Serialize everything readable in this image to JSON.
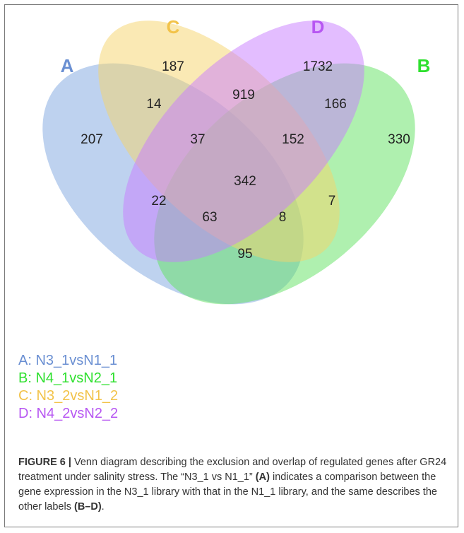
{
  "diagram": {
    "sets": [
      {
        "id": "A",
        "label": "A",
        "color": "#7ea6e0",
        "label_color": "#6a8fd2"
      },
      {
        "id": "B",
        "label": "B",
        "color": "#5fe25f",
        "label_color": "#2fe02f"
      },
      {
        "id": "C",
        "label": "C",
        "color": "#f5d36a",
        "label_color": "#f2c34a"
      },
      {
        "id": "D",
        "label": "D",
        "color": "#c77bff",
        "label_color": "#b757f2"
      }
    ],
    "regions": [
      {
        "key": "C_only",
        "value": "187"
      },
      {
        "key": "D_only",
        "value": "1732"
      },
      {
        "key": "AC",
        "value": "14"
      },
      {
        "key": "CD",
        "value": "919"
      },
      {
        "key": "BD",
        "value": "166"
      },
      {
        "key": "A_only",
        "value": "207"
      },
      {
        "key": "ACD",
        "value": "37"
      },
      {
        "key": "BCD",
        "value": "152"
      },
      {
        "key": "B_only",
        "value": "330"
      },
      {
        "key": "ABCD",
        "value": "342"
      },
      {
        "key": "AD",
        "value": "22"
      },
      {
        "key": "BC",
        "value": "7"
      },
      {
        "key": "ABD",
        "value": "63"
      },
      {
        "key": "ABC",
        "value": "8"
      },
      {
        "key": "AB",
        "value": "95"
      }
    ]
  },
  "legend": [
    {
      "text": "A: N3_1vsN1_1",
      "color": "#6a8fd2"
    },
    {
      "text": "B: N4_1vsN2_1",
      "color": "#2fe02f"
    },
    {
      "text": "C: N3_2vsN1_2",
      "color": "#f2c34a"
    },
    {
      "text": "D: N4_2vsN2_2",
      "color": "#b757f2"
    }
  ],
  "caption": {
    "fig_label": "FIGURE 6 |",
    "part1": " Venn diagram describing the exclusion and overlap of regulated genes after GR24 treatment under salinity stress. The “N3_1 vs N1_1” ",
    "ref_a": "(A)",
    "part2": " indicates a comparison between the gene expression in the N3_1 library with that in the N1_1 library, and the same describes the other labels ",
    "ref_bd": "(B–D)",
    "part3": "."
  }
}
